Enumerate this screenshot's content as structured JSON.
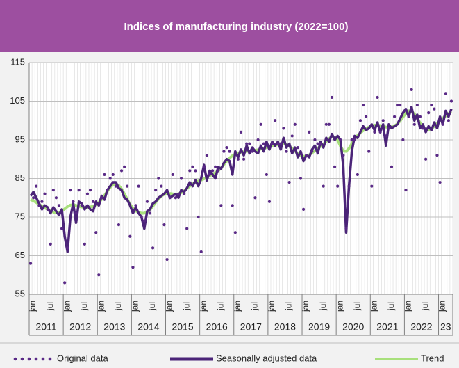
{
  "chart_data": {
    "type": "line",
    "title": "Indices of manufacturing industry (2022=100)",
    "categories": [
      "jan",
      null,
      null,
      null,
      null,
      null,
      "jul",
      null,
      null,
      null,
      null,
      null,
      "jan",
      null,
      null,
      null,
      null,
      null,
      "jul",
      null,
      null,
      null,
      null,
      null,
      "jan",
      null,
      null,
      null,
      null,
      null,
      "jul",
      null,
      null,
      null,
      null,
      null,
      "jan",
      null,
      null,
      null,
      null,
      null,
      "jul",
      null,
      null,
      null,
      null,
      null,
      "jan",
      null,
      null,
      null,
      null,
      null,
      "jul",
      null,
      null,
      null,
      null,
      null,
      "jan",
      null,
      null,
      null,
      null,
      null,
      "jul",
      null,
      null,
      null,
      null,
      null,
      "jan",
      null,
      null,
      null,
      null,
      null,
      "jul",
      null,
      null,
      null,
      null,
      null,
      "jan",
      null,
      null,
      null,
      null,
      null,
      "jul",
      null,
      null,
      null,
      null,
      null,
      "jan",
      null,
      null,
      null,
      null,
      null,
      "jul",
      null,
      null,
      null,
      null,
      null,
      "jan",
      null,
      null,
      null,
      null,
      null,
      "jul",
      null,
      null,
      null,
      null,
      null,
      "jan",
      null,
      null,
      null,
      null,
      null,
      "jul",
      null,
      null,
      null,
      null,
      null,
      "jan",
      null,
      null,
      null,
      null,
      null,
      "jul",
      null,
      null,
      null,
      null,
      null,
      "jan",
      null,
      null,
      null,
      null
    ],
    "years": [
      "2011",
      "2012",
      "2013",
      "2014",
      "2015",
      "2016",
      "2017",
      "2018",
      "2019",
      "2020",
      "2021",
      "2022",
      "23"
    ],
    "ylim": [
      55,
      115
    ],
    "yticks": [
      55,
      65,
      75,
      85,
      95,
      105,
      115
    ],
    "grid": true,
    "legend": "bottom",
    "series": [
      {
        "name": "Original data",
        "color": "#5a2a87",
        "style": "dots",
        "values": [
          63,
          80,
          83,
          78,
          79,
          81,
          77,
          68,
          82,
          80,
          78,
          72,
          58,
          67,
          82,
          79,
          76,
          82,
          78,
          68,
          81,
          82,
          79,
          71,
          60,
          80,
          86,
          82,
          85,
          86,
          83,
          73,
          87,
          88,
          83,
          70,
          62,
          78,
          83,
          75,
          74,
          79,
          76,
          67,
          82,
          85,
          83,
          73,
          64,
          80,
          86,
          80,
          81,
          85,
          81,
          72,
          87,
          88,
          87,
          75,
          66,
          88,
          91,
          86,
          87,
          88,
          87,
          78,
          92,
          93,
          92,
          78,
          71,
          90,
          97,
          90,
          94,
          94,
          92,
          80,
          95,
          99,
          94,
          86,
          79,
          94,
          100,
          94,
          94,
          98,
          92,
          84,
          96,
          99,
          93,
          85,
          77,
          91,
          97,
          92,
          95,
          94,
          94,
          83,
          99,
          99,
          106,
          88,
          83,
          95,
          91,
          72,
          83,
          95,
          95,
          86,
          100,
          104,
          101,
          92,
          83,
          97,
          106,
          97,
          100,
          96,
          98,
          88,
          101,
          104,
          104,
          95,
          82,
          101,
          108,
          99,
          104,
          101,
          98,
          90,
          102,
          104,
          103,
          91,
          84,
          99,
          107,
          100,
          105
        ]
      },
      {
        "name": "Seasonally adjusted data",
        "color": "#4b2478",
        "style": "thick",
        "values": [
          80.5,
          81.5,
          80.0,
          78.5,
          77.0,
          78.0,
          77.5,
          76.0,
          77.5,
          76.5,
          75.5,
          77.0,
          70.0,
          66.0,
          75.0,
          78.5,
          73.5,
          79.0,
          78.5,
          77.0,
          78.0,
          77.0,
          76.5,
          79.0,
          78.0,
          80.5,
          79.5,
          82.0,
          83.0,
          84.0,
          84.0,
          82.5,
          82.0,
          80.0,
          79.5,
          78.0,
          76.0,
          77.5,
          76.0,
          75.0,
          72.0,
          76.5,
          77.0,
          78.5,
          79.0,
          80.0,
          80.5,
          81.0,
          82.0,
          80.0,
          80.5,
          81.0,
          80.0,
          82.0,
          81.5,
          82.5,
          84.0,
          83.0,
          84.5,
          83.0,
          85.0,
          88.5,
          84.5,
          87.0,
          86.0,
          85.0,
          88.0,
          87.5,
          89.0,
          90.0,
          89.5,
          86.0,
          92.0,
          90.5,
          92.5,
          91.0,
          93.5,
          91.5,
          93.0,
          92.0,
          91.5,
          93.5,
          92.0,
          94.5,
          92.5,
          94.5,
          93.5,
          94.5,
          92.5,
          95.5,
          93.0,
          94.0,
          91.5,
          93.0,
          90.5,
          92.0,
          89.5,
          91.0,
          90.5,
          92.5,
          93.5,
          91.5,
          94.5,
          93.0,
          95.5,
          94.5,
          96.5,
          95.0,
          96.0,
          95.0,
          88.0,
          71.0,
          83.0,
          92.0,
          96.0,
          95.5,
          97.0,
          98.5,
          97.5,
          98.0,
          99.0,
          97.5,
          99.5,
          97.0,
          99.0,
          93.5,
          99.0,
          98.0,
          98.5,
          99.0,
          100.5,
          102.0,
          103.0,
          101.0,
          103.5,
          100.0,
          101.5,
          98.0,
          99.0,
          97.0,
          98.5,
          97.5,
          99.5,
          98.0,
          101.0,
          99.0,
          102.5,
          101.0,
          103.0
        ]
      },
      {
        "name": "Trend",
        "color": "#a8e07c",
        "style": "line",
        "values": [
          79.5,
          79.2,
          78.8,
          78.3,
          77.8,
          77.4,
          77.0,
          76.6,
          76.3,
          76.1,
          76.2,
          76.6,
          77.1,
          77.7,
          78.1,
          78.2,
          78.0,
          77.8,
          77.6,
          77.5,
          77.5,
          77.6,
          77.8,
          78.2,
          78.8,
          79.6,
          80.6,
          81.7,
          82.7,
          83.4,
          83.6,
          83.2,
          82.3,
          81.0,
          79.6,
          78.3,
          77.3,
          76.6,
          76.2,
          76.0,
          76.0,
          76.3,
          76.9,
          77.8,
          78.8,
          79.7,
          80.4,
          80.9,
          81.1,
          81.1,
          81.0,
          80.9,
          81.0,
          81.3,
          81.8,
          82.4,
          83.0,
          83.6,
          84.0,
          84.3,
          84.6,
          84.9,
          85.3,
          85.7,
          86.1,
          86.5,
          87.0,
          87.7,
          88.6,
          89.5,
          90.3,
          90.9,
          91.3,
          91.6,
          91.8,
          91.9,
          92.0,
          92.1,
          92.2,
          92.3,
          92.4,
          92.6,
          92.8,
          93.0,
          93.2,
          93.4,
          93.6,
          93.8,
          94.0,
          94.0,
          93.8,
          93.4,
          92.8,
          92.1,
          91.4,
          90.9,
          90.7,
          90.8,
          91.1,
          91.6,
          92.2,
          92.8,
          93.3,
          93.9,
          94.6,
          95.3,
          95.8,
          95.7,
          94.9,
          93.4,
          92.1,
          92.0,
          92.8,
          94.0,
          95.2,
          96.1,
          96.8,
          97.4,
          97.9,
          98.3,
          98.6,
          98.8,
          98.8,
          98.7,
          98.5,
          98.3,
          98.2,
          98.3,
          98.6,
          99.1,
          99.9,
          100.9,
          101.9,
          102.5,
          102.4,
          101.7,
          100.6,
          99.4,
          98.4,
          97.7,
          97.6,
          97.9,
          98.5,
          99.2,
          99.9,
          100.6,
          101.2,
          101.8,
          102.3
        ]
      }
    ]
  }
}
